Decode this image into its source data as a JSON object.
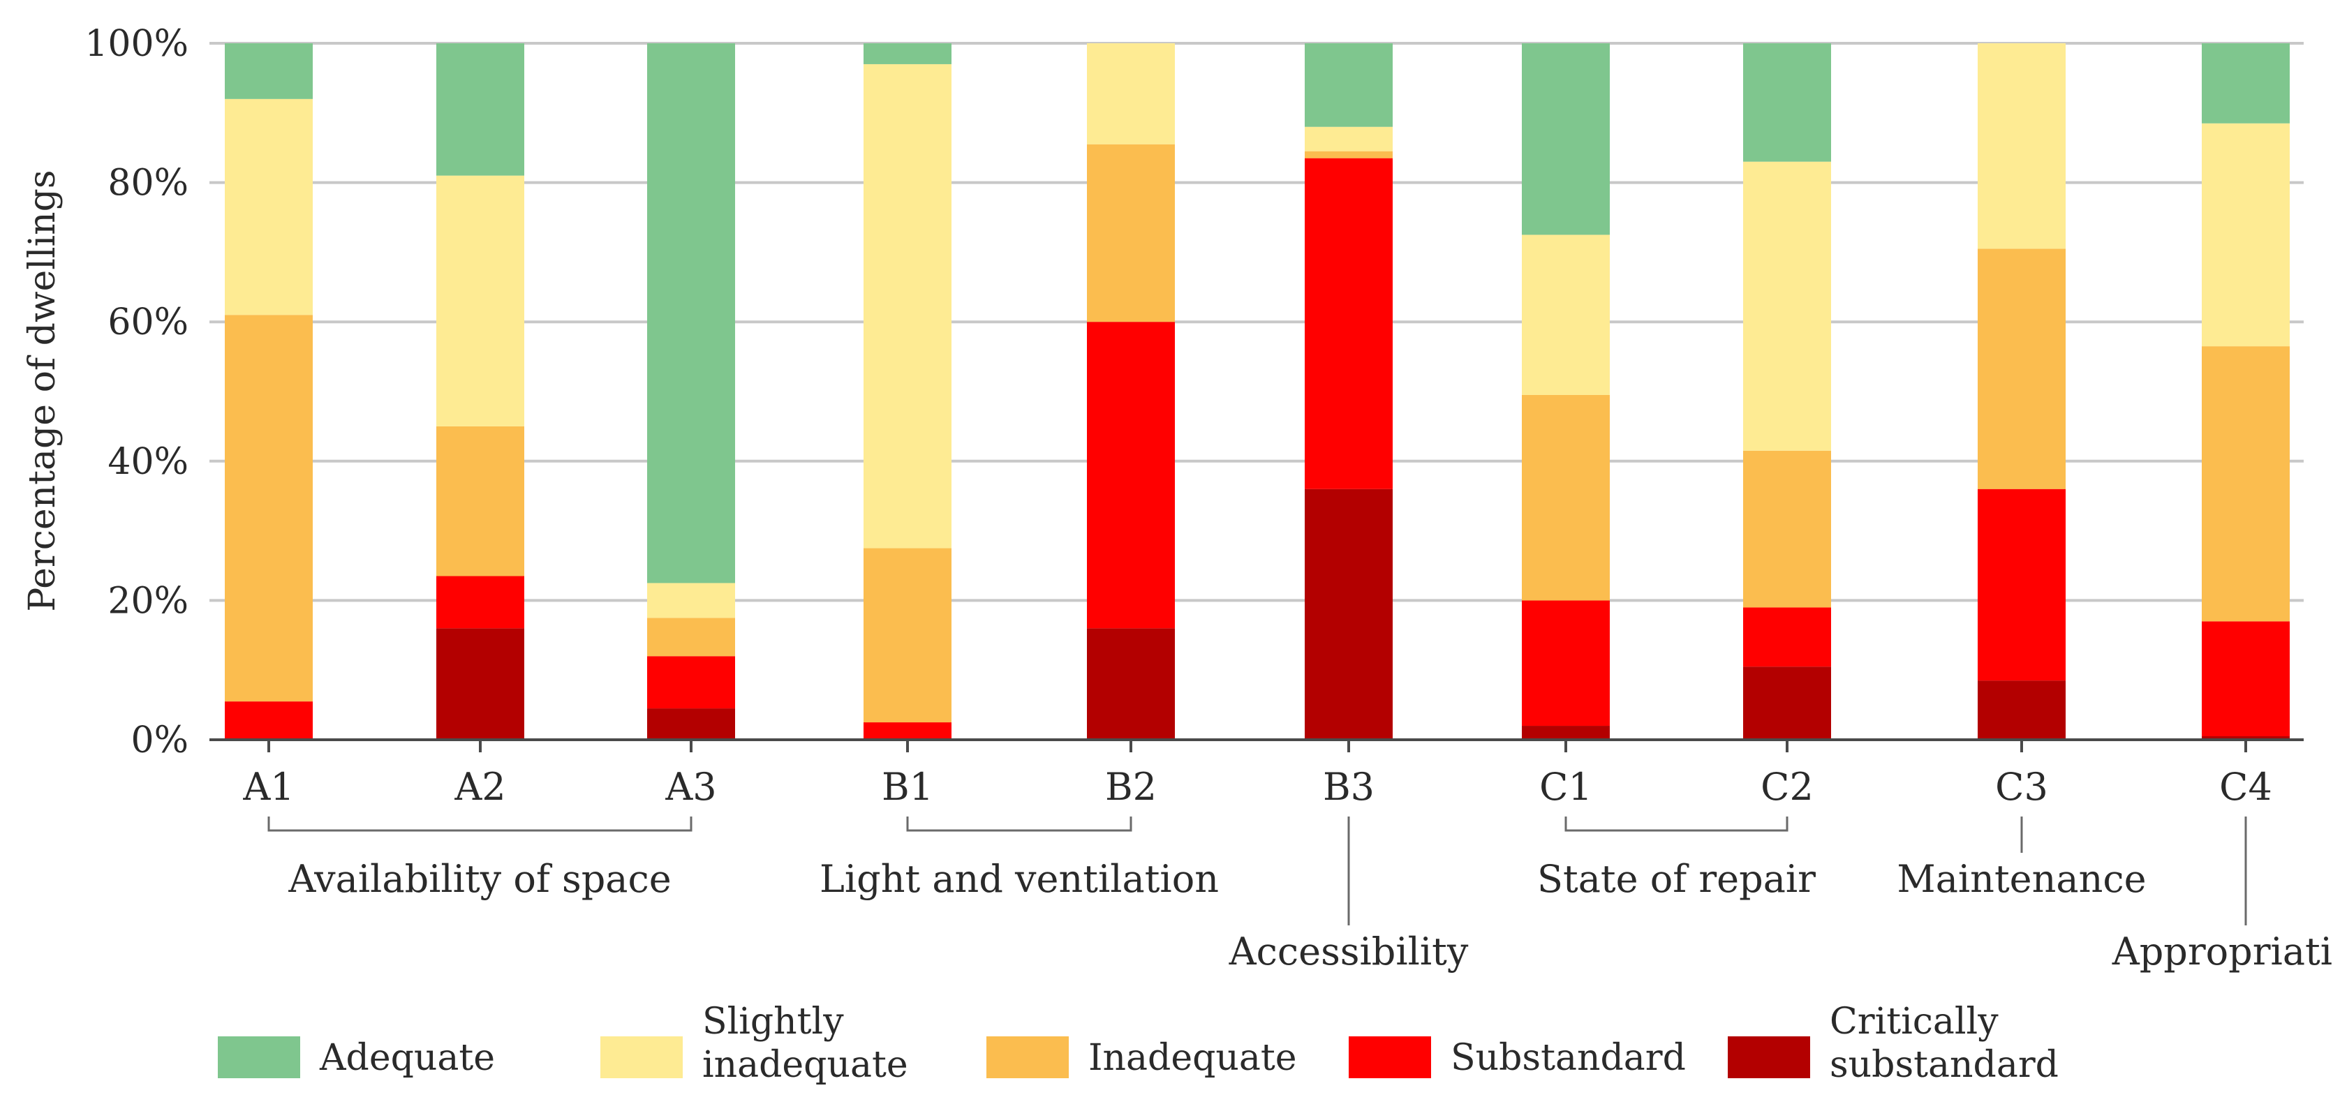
{
  "chart_data": {
    "type": "bar",
    "stacked": true,
    "ylabel": "Percentage of dwellings",
    "ylim": [
      0,
      100
    ],
    "yticks": [
      0,
      20,
      40,
      60,
      80,
      100
    ],
    "ytick_labels": [
      "0%",
      "20%",
      "40%",
      "60%",
      "80%",
      "100%"
    ],
    "grid": true,
    "categories": [
      "A1",
      "A2",
      "A3",
      "B1",
      "B2",
      "B3",
      "C1",
      "C2",
      "C3",
      "C4"
    ],
    "series": [
      {
        "name": "Critically substandard",
        "color": "#b30000",
        "values": [
          0,
          16,
          4.5,
          0,
          16,
          36,
          2,
          10.5,
          8.5,
          0.5
        ]
      },
      {
        "name": "Substandard",
        "color": "#ff0000",
        "values": [
          5.5,
          7.5,
          7.5,
          2.5,
          44,
          47.5,
          18,
          8.5,
          27.5,
          16.5
        ]
      },
      {
        "name": "Inadequate",
        "color": "#fbbd4f",
        "values": [
          55.5,
          21.5,
          5.5,
          25,
          25.5,
          1,
          29.5,
          22.5,
          34.5,
          39.5
        ]
      },
      {
        "name": "Slightly inadequate",
        "color": "#feeb93",
        "values": [
          31,
          36,
          5,
          69.5,
          14.5,
          3.5,
          23,
          41.5,
          29.5,
          32
        ]
      },
      {
        "name": "Adequate",
        "color": "#7fc68e",
        "values": [
          8,
          19,
          77.5,
          3,
          0,
          12,
          27.5,
          17,
          0,
          11.5
        ]
      }
    ],
    "groups": [
      {
        "label": "Availability of space",
        "members": [
          "A1",
          "A2",
          "A3"
        ]
      },
      {
        "label": "Light and ventilation",
        "members": [
          "B1",
          "B2"
        ]
      },
      {
        "label": "Accessibility",
        "members": [
          "B3"
        ]
      },
      {
        "label": "State of repair",
        "members": [
          "C1",
          "C2"
        ]
      },
      {
        "label": "Maintenance",
        "members": [
          "C3"
        ]
      },
      {
        "label": "Appropriation",
        "members": [
          "C4"
        ]
      }
    ],
    "legend": {
      "position": "bottom",
      "items": [
        {
          "label_lines": [
            "Adequate"
          ],
          "color": "#7fc68e"
        },
        {
          "label_lines": [
            "Slightly",
            "inadequate"
          ],
          "color": "#feeb93"
        },
        {
          "label_lines": [
            "Inadequate"
          ],
          "color": "#fbbd4f"
        },
        {
          "label_lines": [
            "Substandard"
          ],
          "color": "#ff0000"
        },
        {
          "label_lines": [
            "Critically",
            "substandard"
          ],
          "color": "#b30000"
        }
      ]
    }
  }
}
